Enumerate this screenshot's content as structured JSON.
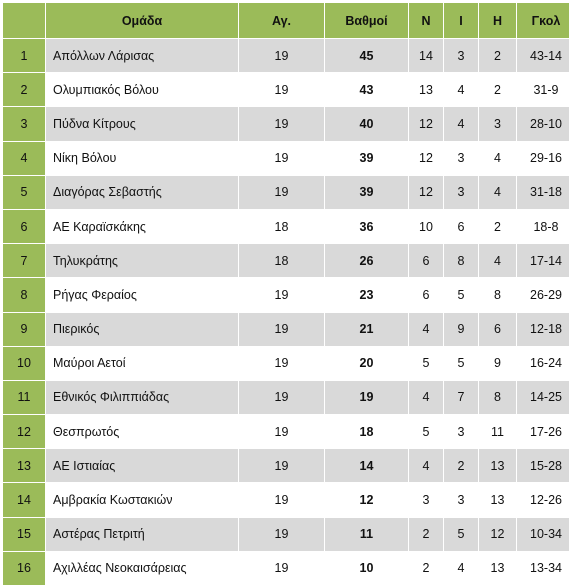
{
  "table": {
    "headers": {
      "position": "",
      "team": "Ομάδα",
      "games": "Αγ.",
      "points": "Βαθμοί",
      "wins": "Ν",
      "draws": "Ι",
      "losses": "Η",
      "goals": "Γκολ"
    },
    "rows": [
      {
        "pos": "1",
        "team": "Απόλλων Λάρισας",
        "games": "19",
        "points": "45",
        "w": "14",
        "d": "3",
        "l": "2",
        "goals": "43-14"
      },
      {
        "pos": "2",
        "team": "Ολυμπιακός Βόλου",
        "games": "19",
        "points": "43",
        "w": "13",
        "d": "4",
        "l": "2",
        "goals": "31-9"
      },
      {
        "pos": "3",
        "team": "Πύδνα Κίτρους",
        "games": "19",
        "points": "40",
        "w": "12",
        "d": "4",
        "l": "3",
        "goals": "28-10"
      },
      {
        "pos": "4",
        "team": "Νίκη Βόλου",
        "games": "19",
        "points": "39",
        "w": "12",
        "d": "3",
        "l": "4",
        "goals": "29-16"
      },
      {
        "pos": "5",
        "team": "Διαγόρας Σεβαστής",
        "games": "19",
        "points": "39",
        "w": "12",
        "d": "3",
        "l": "4",
        "goals": "31-18"
      },
      {
        "pos": "6",
        "team": "ΑΕ Καραϊσκάκης",
        "games": "18",
        "points": "36",
        "w": "10",
        "d": "6",
        "l": "2",
        "goals": "18-8"
      },
      {
        "pos": "7",
        "team": "Τηλυκράτης",
        "games": "18",
        "points": "26",
        "w": "6",
        "d": "8",
        "l": "4",
        "goals": "17-14"
      },
      {
        "pos": "8",
        "team": "Ρήγας Φεραίος",
        "games": "19",
        "points": "23",
        "w": "6",
        "d": "5",
        "l": "8",
        "goals": "26-29"
      },
      {
        "pos": "9",
        "team": "Πιερικός",
        "games": "19",
        "points": "21",
        "w": "4",
        "d": "9",
        "l": "6",
        "goals": "12-18"
      },
      {
        "pos": "10",
        "team": "Μαύροι Αετοί",
        "games": "19",
        "points": "20",
        "w": "5",
        "d": "5",
        "l": "9",
        "goals": "16-24"
      },
      {
        "pos": "11",
        "team": "Εθνικός Φιλιππιάδας",
        "games": "19",
        "points": "19",
        "w": "4",
        "d": "7",
        "l": "8",
        "goals": "14-25"
      },
      {
        "pos": "12",
        "team": "Θεσπρωτός",
        "games": "19",
        "points": "18",
        "w": "5",
        "d": "3",
        "l": "11",
        "goals": "17-26"
      },
      {
        "pos": "13",
        "team": "ΑΕ Ιστιαίας",
        "games": "19",
        "points": "14",
        "w": "4",
        "d": "2",
        "l": "13",
        "goals": "15-28"
      },
      {
        "pos": "14",
        "team": "Αμβρακία Κωστακιών",
        "games": "19",
        "points": "12",
        "w": "3",
        "d": "3",
        "l": "13",
        "goals": "12-26"
      },
      {
        "pos": "15",
        "team": "Αστέρας Πετριτή",
        "games": "19",
        "points": "11",
        "w": "2",
        "d": "5",
        "l": "12",
        "goals": "10-34"
      },
      {
        "pos": "16",
        "team": "Αχιλλέας Νεοκαισάρειας",
        "games": "19",
        "points": "10",
        "w": "2",
        "d": "4",
        "l": "13",
        "goals": "13-34"
      }
    ]
  },
  "colors": {
    "header_green": "#9bbb59",
    "row_gray": "#d9d9d9",
    "row_white": "#ffffff"
  }
}
